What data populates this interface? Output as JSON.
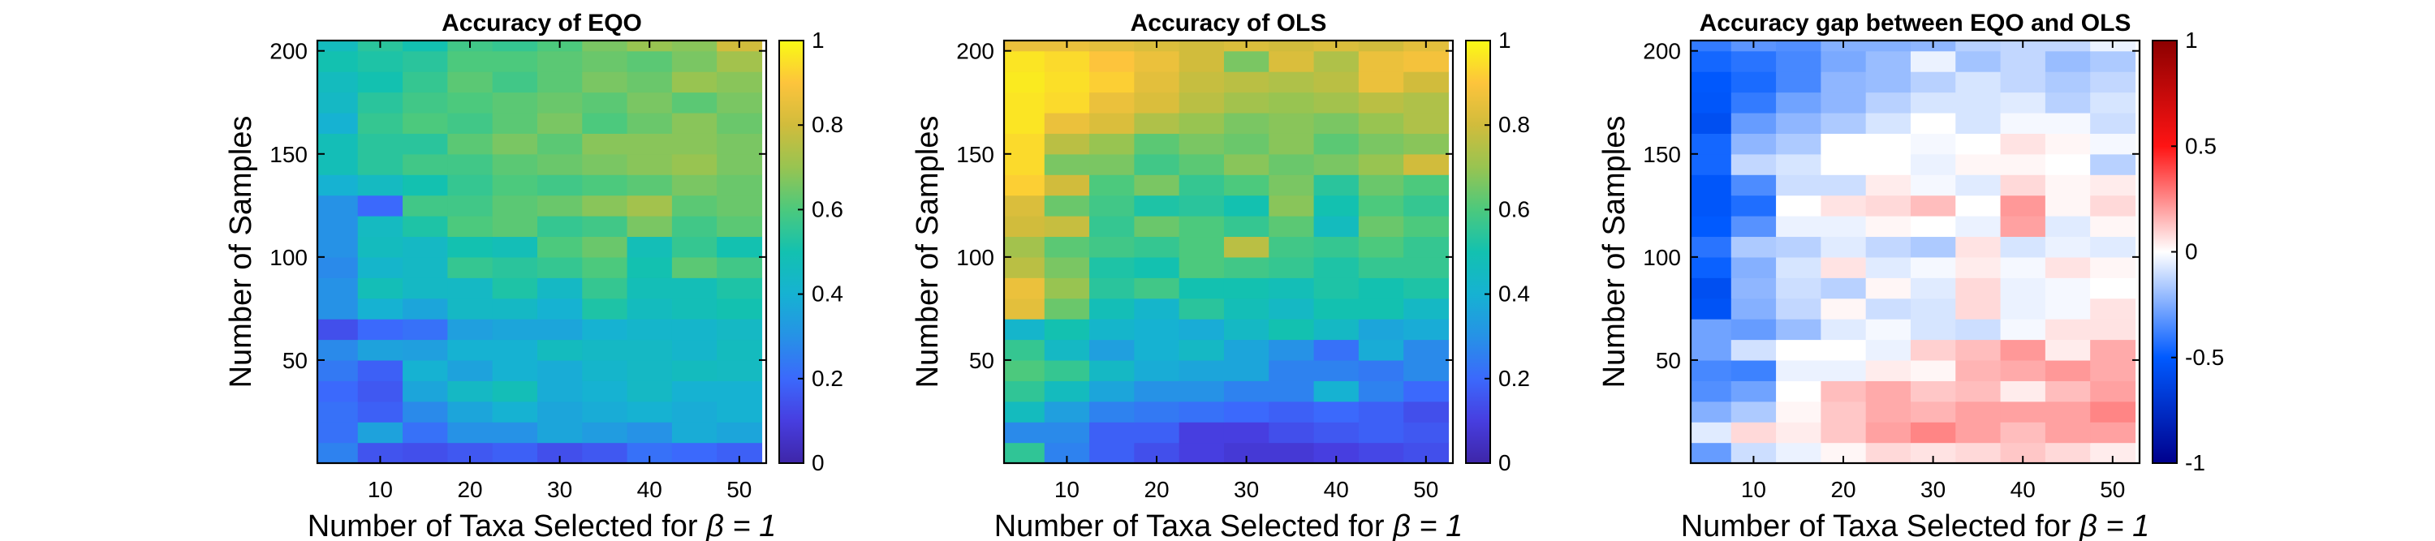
{
  "chart_data": [
    {
      "type": "heatmap",
      "title": "Accuracy of EQO",
      "xlabel": "Number of Taxa Selected for",
      "xlabel_symbol": "β = 1",
      "ylabel": "Number of Samples",
      "x_ticks": [
        "10",
        "20",
        "30",
        "40",
        "50"
      ],
      "y_ticks": [
        "50",
        "100",
        "150",
        "200"
      ],
      "colorbar_ticks": [
        "0",
        "0.2",
        "0.4",
        "0.6",
        "0.8",
        "1"
      ],
      "colormap": "parula",
      "clim": [
        0,
        1
      ],
      "x_range": [
        3,
        53
      ],
      "y_range": [
        0,
        205
      ],
      "x_centers": [
        5,
        10,
        15,
        20,
        25,
        30,
        35,
        40,
        45,
        50
      ],
      "y_centers": [
        5,
        15,
        25,
        35,
        45,
        55,
        65,
        75,
        85,
        95,
        105,
        115,
        125,
        135,
        145,
        155,
        165,
        175,
        185,
        195,
        205
      ],
      "values": [
        [
          0.26,
          0.15,
          0.14,
          0.16,
          0.18,
          0.14,
          0.16,
          0.22,
          0.2,
          0.18
        ],
        [
          0.22,
          0.35,
          0.22,
          0.3,
          0.3,
          0.36,
          0.33,
          0.3,
          0.38,
          0.36
        ],
        [
          0.22,
          0.18,
          0.28,
          0.36,
          0.4,
          0.36,
          0.38,
          0.4,
          0.38,
          0.4
        ],
        [
          0.2,
          0.16,
          0.36,
          0.44,
          0.48,
          0.38,
          0.4,
          0.44,
          0.4,
          0.4
        ],
        [
          0.24,
          0.18,
          0.4,
          0.35,
          0.4,
          0.38,
          0.42,
          0.44,
          0.46,
          0.45
        ],
        [
          0.28,
          0.35,
          0.34,
          0.4,
          0.4,
          0.46,
          0.44,
          0.44,
          0.42,
          0.46
        ],
        [
          0.14,
          0.2,
          0.22,
          0.34,
          0.36,
          0.36,
          0.4,
          0.42,
          0.42,
          0.44
        ],
        [
          0.3,
          0.4,
          0.36,
          0.44,
          0.44,
          0.4,
          0.52,
          0.46,
          0.48,
          0.5
        ],
        [
          0.3,
          0.48,
          0.44,
          0.44,
          0.52,
          0.44,
          0.56,
          0.48,
          0.48,
          0.52
        ],
        [
          0.28,
          0.42,
          0.44,
          0.56,
          0.54,
          0.56,
          0.6,
          0.5,
          0.62,
          0.58
        ],
        [
          0.3,
          0.46,
          0.44,
          0.5,
          0.48,
          0.6,
          0.64,
          0.48,
          0.56,
          0.5
        ],
        [
          0.3,
          0.45,
          0.52,
          0.6,
          0.62,
          0.56,
          0.58,
          0.66,
          0.58,
          0.62
        ],
        [
          0.3,
          0.2,
          0.58,
          0.58,
          0.62,
          0.64,
          0.68,
          0.72,
          0.62,
          0.64
        ],
        [
          0.4,
          0.45,
          0.5,
          0.56,
          0.6,
          0.58,
          0.6,
          0.62,
          0.66,
          0.64
        ],
        [
          0.48,
          0.54,
          0.58,
          0.58,
          0.62,
          0.64,
          0.66,
          0.68,
          0.7,
          0.66
        ],
        [
          0.48,
          0.54,
          0.54,
          0.62,
          0.66,
          0.62,
          0.68,
          0.68,
          0.68,
          0.66
        ],
        [
          0.4,
          0.56,
          0.6,
          0.58,
          0.62,
          0.66,
          0.6,
          0.64,
          0.68,
          0.64
        ],
        [
          0.44,
          0.54,
          0.58,
          0.6,
          0.62,
          0.64,
          0.62,
          0.66,
          0.62,
          0.66
        ],
        [
          0.46,
          0.5,
          0.56,
          0.62,
          0.58,
          0.62,
          0.66,
          0.64,
          0.7,
          0.68
        ],
        [
          0.5,
          0.52,
          0.54,
          0.6,
          0.6,
          0.62,
          0.64,
          0.62,
          0.66,
          0.72
        ],
        [
          0.46,
          0.54,
          0.5,
          0.58,
          0.56,
          0.6,
          0.66,
          0.7,
          0.68,
          0.8
        ]
      ]
    },
    {
      "type": "heatmap",
      "title": "Accuracy of OLS",
      "xlabel": "Number of Taxa Selected for",
      "xlabel_symbol": "β = 1",
      "ylabel": "Number of Samples",
      "x_ticks": [
        "10",
        "20",
        "30",
        "40",
        "50"
      ],
      "y_ticks": [
        "50",
        "100",
        "150",
        "200"
      ],
      "colorbar_ticks": [
        "0",
        "0.2",
        "0.4",
        "0.6",
        "0.8",
        "1"
      ],
      "colormap": "parula",
      "clim": [
        0,
        1
      ],
      "x_range": [
        3,
        53
      ],
      "y_range": [
        0,
        205
      ],
      "x_centers": [
        5,
        10,
        15,
        20,
        25,
        30,
        35,
        40,
        45,
        50
      ],
      "y_centers": [
        5,
        15,
        25,
        35,
        45,
        55,
        65,
        75,
        85,
        95,
        105,
        115,
        125,
        135,
        145,
        155,
        165,
        175,
        185,
        195,
        205
      ],
      "values": [
        [
          0.55,
          0.26,
          0.18,
          0.14,
          0.1,
          0.08,
          0.08,
          0.1,
          0.12,
          0.14
        ],
        [
          0.28,
          0.28,
          0.18,
          0.18,
          0.1,
          0.1,
          0.14,
          0.16,
          0.18,
          0.16
        ],
        [
          0.46,
          0.34,
          0.26,
          0.24,
          0.22,
          0.2,
          0.18,
          0.2,
          0.18,
          0.14
        ],
        [
          0.55,
          0.46,
          0.36,
          0.3,
          0.3,
          0.26,
          0.26,
          0.4,
          0.26,
          0.2
        ],
        [
          0.6,
          0.56,
          0.44,
          0.38,
          0.36,
          0.36,
          0.26,
          0.26,
          0.24,
          0.28
        ],
        [
          0.56,
          0.44,
          0.34,
          0.4,
          0.44,
          0.36,
          0.3,
          0.22,
          0.38,
          0.28
        ],
        [
          0.42,
          0.5,
          0.42,
          0.4,
          0.38,
          0.44,
          0.5,
          0.44,
          0.36,
          0.38
        ],
        [
          0.84,
          0.64,
          0.48,
          0.42,
          0.54,
          0.48,
          0.44,
          0.5,
          0.5,
          0.44
        ],
        [
          0.86,
          0.7,
          0.54,
          0.58,
          0.5,
          0.5,
          0.48,
          0.52,
          0.5,
          0.52
        ],
        [
          0.76,
          0.66,
          0.52,
          0.5,
          0.6,
          0.58,
          0.56,
          0.52,
          0.56,
          0.56
        ],
        [
          0.72,
          0.62,
          0.58,
          0.56,
          0.6,
          0.76,
          0.58,
          0.56,
          0.6,
          0.56
        ],
        [
          0.8,
          0.78,
          0.56,
          0.64,
          0.6,
          0.56,
          0.62,
          0.46,
          0.64,
          0.6
        ],
        [
          0.82,
          0.64,
          0.58,
          0.52,
          0.54,
          0.5,
          0.68,
          0.5,
          0.6,
          0.56
        ],
        [
          0.92,
          0.8,
          0.6,
          0.66,
          0.56,
          0.6,
          0.66,
          0.54,
          0.64,
          0.6
        ],
        [
          0.94,
          0.66,
          0.66,
          0.58,
          0.62,
          0.68,
          0.64,
          0.66,
          0.7,
          0.8
        ],
        [
          0.94,
          0.76,
          0.7,
          0.62,
          0.66,
          0.64,
          0.68,
          0.62,
          0.66,
          0.68
        ],
        [
          0.96,
          0.86,
          0.82,
          0.74,
          0.7,
          0.66,
          0.68,
          0.66,
          0.7,
          0.74
        ],
        [
          0.96,
          0.94,
          0.86,
          0.82,
          0.76,
          0.72,
          0.7,
          0.72,
          0.76,
          0.74
        ],
        [
          0.97,
          0.95,
          0.92,
          0.84,
          0.78,
          0.76,
          0.74,
          0.76,
          0.86,
          0.8
        ],
        [
          0.96,
          0.94,
          0.9,
          0.86,
          0.8,
          0.66,
          0.82,
          0.74,
          0.86,
          0.88
        ],
        [
          0.86,
          0.86,
          0.84,
          0.82,
          0.8,
          0.82,
          0.8,
          0.82,
          0.8,
          0.84
        ]
      ]
    },
    {
      "type": "heatmap",
      "title": "Accuracy gap between EQO and OLS",
      "xlabel": "Number of Taxa Selected for",
      "xlabel_symbol": "β = 1",
      "ylabel": "Number of Samples",
      "x_ticks": [
        "10",
        "20",
        "30",
        "40",
        "50"
      ],
      "y_ticks": [
        "50",
        "100",
        "150",
        "200"
      ],
      "colorbar_ticks": [
        "-1",
        "-0.5",
        "0",
        "0.5",
        "1"
      ],
      "colormap": "blue-white-red",
      "clim": [
        -1,
        1
      ],
      "x_range": [
        3,
        53
      ],
      "y_range": [
        0,
        205
      ],
      "x_centers": [
        5,
        10,
        15,
        20,
        25,
        30,
        35,
        40,
        45,
        50
      ],
      "y_centers": [
        5,
        15,
        25,
        35,
        45,
        55,
        65,
        75,
        85,
        95,
        105,
        115,
        125,
        135,
        145,
        155,
        165,
        175,
        185,
        195,
        205
      ],
      "values": [
        [
          -0.3,
          -0.1,
          -0.04,
          0.02,
          0.08,
          0.06,
          0.08,
          0.12,
          0.08,
          0.04
        ],
        [
          -0.06,
          0.08,
          0.04,
          0.12,
          0.2,
          0.26,
          0.2,
          0.14,
          0.2,
          0.2
        ],
        [
          -0.24,
          -0.16,
          0.02,
          0.12,
          0.18,
          0.16,
          0.2,
          0.2,
          0.2,
          0.26
        ],
        [
          -0.34,
          -0.28,
          0.0,
          0.14,
          0.18,
          0.12,
          0.14,
          0.04,
          0.14,
          0.2
        ],
        [
          -0.36,
          -0.38,
          -0.04,
          -0.04,
          0.04,
          0.02,
          0.16,
          0.18,
          0.22,
          0.18
        ],
        [
          -0.28,
          -0.09,
          0.0,
          0.0,
          -0.04,
          0.1,
          0.14,
          0.22,
          0.04,
          0.18
        ],
        [
          -0.28,
          -0.3,
          -0.2,
          -0.06,
          -0.02,
          -0.08,
          -0.1,
          -0.02,
          0.06,
          0.06
        ],
        [
          -0.54,
          -0.24,
          -0.12,
          0.02,
          -0.1,
          -0.08,
          0.08,
          -0.04,
          -0.02,
          0.06
        ],
        [
          -0.56,
          -0.22,
          -0.1,
          -0.14,
          0.02,
          -0.06,
          0.08,
          -0.04,
          -0.02,
          0.0
        ],
        [
          -0.48,
          -0.24,
          -0.08,
          0.06,
          -0.06,
          -0.02,
          0.04,
          -0.02,
          0.06,
          0.02
        ],
        [
          -0.42,
          -0.16,
          -0.14,
          -0.06,
          -0.12,
          -0.16,
          0.06,
          -0.08,
          -0.04,
          -0.06
        ],
        [
          -0.5,
          -0.33,
          -0.04,
          -0.04,
          0.02,
          0.0,
          -0.04,
          0.2,
          -0.06,
          0.02
        ],
        [
          -0.52,
          -0.44,
          0.0,
          0.06,
          0.08,
          0.14,
          0.0,
          0.22,
          0.02,
          0.08
        ],
        [
          -0.52,
          -0.35,
          -0.1,
          -0.1,
          0.04,
          -0.02,
          -0.06,
          0.08,
          0.02,
          0.04
        ],
        [
          -0.46,
          -0.12,
          -0.08,
          0.0,
          0.0,
          -0.04,
          0.02,
          0.02,
          0.0,
          -0.14
        ],
        [
          -0.46,
          -0.22,
          -0.16,
          0.0,
          0.0,
          -0.02,
          0.0,
          0.06,
          0.02,
          -0.02
        ],
        [
          -0.56,
          -0.3,
          -0.22,
          -0.16,
          -0.08,
          0.0,
          -0.08,
          -0.02,
          -0.02,
          -0.1
        ],
        [
          -0.52,
          -0.4,
          -0.28,
          -0.22,
          -0.14,
          -0.08,
          -0.08,
          -0.06,
          -0.14,
          -0.08
        ],
        [
          -0.51,
          -0.45,
          -0.36,
          -0.22,
          -0.2,
          -0.14,
          -0.08,
          -0.12,
          -0.16,
          -0.12
        ],
        [
          -0.46,
          -0.42,
          -0.36,
          -0.26,
          -0.2,
          -0.04,
          -0.18,
          -0.12,
          -0.2,
          -0.16
        ],
        [
          -0.4,
          -0.32,
          -0.34,
          -0.24,
          -0.24,
          -0.22,
          -0.14,
          -0.12,
          -0.12,
          -0.04
        ]
      ]
    }
  ]
}
